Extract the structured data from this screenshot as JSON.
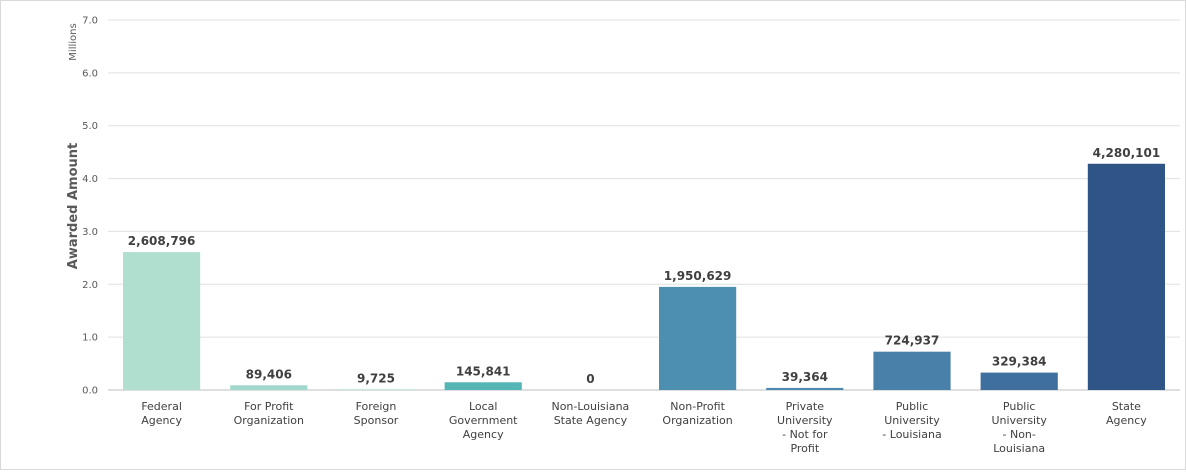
{
  "chart_data": {
    "type": "bar",
    "units_label": "Millions",
    "ylabel": "Awarded Amount",
    "xlabel": "",
    "ylim": [
      0,
      7000000
    ],
    "y_ticks": [
      {
        "value": 0,
        "label": "0.0"
      },
      {
        "value": 1000000,
        "label": "1.0"
      },
      {
        "value": 2000000,
        "label": "2.0"
      },
      {
        "value": 3000000,
        "label": "3.0"
      },
      {
        "value": 4000000,
        "label": "4.0"
      },
      {
        "value": 5000000,
        "label": "5.0"
      },
      {
        "value": 6000000,
        "label": "6.0"
      },
      {
        "value": 7000000,
        "label": "7.0"
      }
    ],
    "grid": true,
    "categories": [
      [
        "Federal",
        "Agency"
      ],
      [
        "For Profit",
        "Organization"
      ],
      [
        "Foreign",
        "Sponsor"
      ],
      [
        "Local",
        "Government",
        "Agency"
      ],
      [
        "Non-Louisiana",
        "State Agency"
      ],
      [
        "Non-Profit",
        "Organization"
      ],
      [
        "Private",
        "University",
        "- Not for",
        "Profit"
      ],
      [
        "Public",
        "University",
        "- Louisiana"
      ],
      [
        "Public",
        "University",
        "- Non-",
        "Louisiana"
      ],
      [
        "State",
        "Agency"
      ]
    ],
    "values": [
      2608796,
      89406,
      9725,
      145841,
      0,
      1950629,
      39364,
      724937,
      329384,
      4280101
    ],
    "data_labels": [
      "2,608,796",
      "89,406",
      "9,725",
      "145,841",
      "0",
      "1,950,629",
      "39,364",
      "724,937",
      "329,384",
      "4,280,101"
    ],
    "colors": [
      "#b0dfd0",
      "#a0d8cc",
      "#8fd0c8",
      "#55b5b5",
      "#4fa3b3",
      "#4d8fb1",
      "#4b89af",
      "#4880aa",
      "#3f6f9f",
      "#2f5587"
    ]
  }
}
